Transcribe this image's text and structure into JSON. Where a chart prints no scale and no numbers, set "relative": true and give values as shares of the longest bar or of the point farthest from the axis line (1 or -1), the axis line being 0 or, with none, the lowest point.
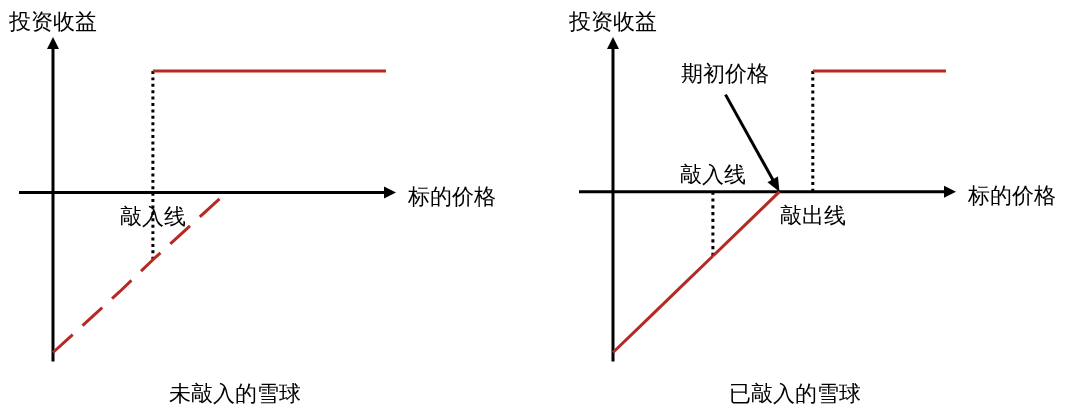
{
  "chart_data": [
    {
      "type": "line",
      "title": "未敲入的雪球",
      "xlabel": "标的价格",
      "ylabel": "投资收益",
      "relative": true,
      "categories": [
        null,
        null,
        null,
        null,
        null,
        null,
        null,
        null,
        null,
        null,
        null
      ],
      "series": [
        {
          "color": "#b52a22",
          "line_style": "solid",
          "values": [
            null,
            null,
            null,
            0.76,
            0.76,
            0.76,
            0.76,
            0.76,
            0.76,
            0.76,
            0.76
          ]
        },
        {
          "color": "#b52a22",
          "line_style": "dashed",
          "values": [
            -1,
            -0.81,
            -0.62,
            -0.42,
            -0.23,
            -0.04,
            null,
            null,
            null,
            null,
            null
          ]
        }
      ],
      "annotations": [
        "敲入线"
      ]
    },
    {
      "type": "line",
      "title": "已敲入的雪球",
      "xlabel": "标的价格",
      "ylabel": "投资收益",
      "relative": true,
      "categories": [
        null,
        null,
        null,
        null,
        null,
        null,
        null,
        null,
        null,
        null,
        null
      ],
      "series": [
        {
          "color": "#b52a22",
          "line_style": "solid",
          "values": [
            -1,
            -0.8,
            -0.6,
            -0.4,
            null,
            null,
            null,
            null,
            null,
            null,
            null
          ]
        },
        {
          "color": "#b52a22",
          "line_style": "solid",
          "values": [
            null,
            null,
            null,
            -0.4,
            -0.2,
            0,
            null,
            null,
            null,
            null,
            null
          ]
        },
        {
          "color": "#b52a22",
          "line_style": "solid",
          "values": [
            null,
            null,
            null,
            null,
            null,
            null,
            0.75,
            0.75,
            0.75,
            0.75,
            0.75
          ]
        }
      ],
      "annotations": [
        "敲入线",
        "期初价格",
        "敲出线"
      ]
    }
  ]
}
